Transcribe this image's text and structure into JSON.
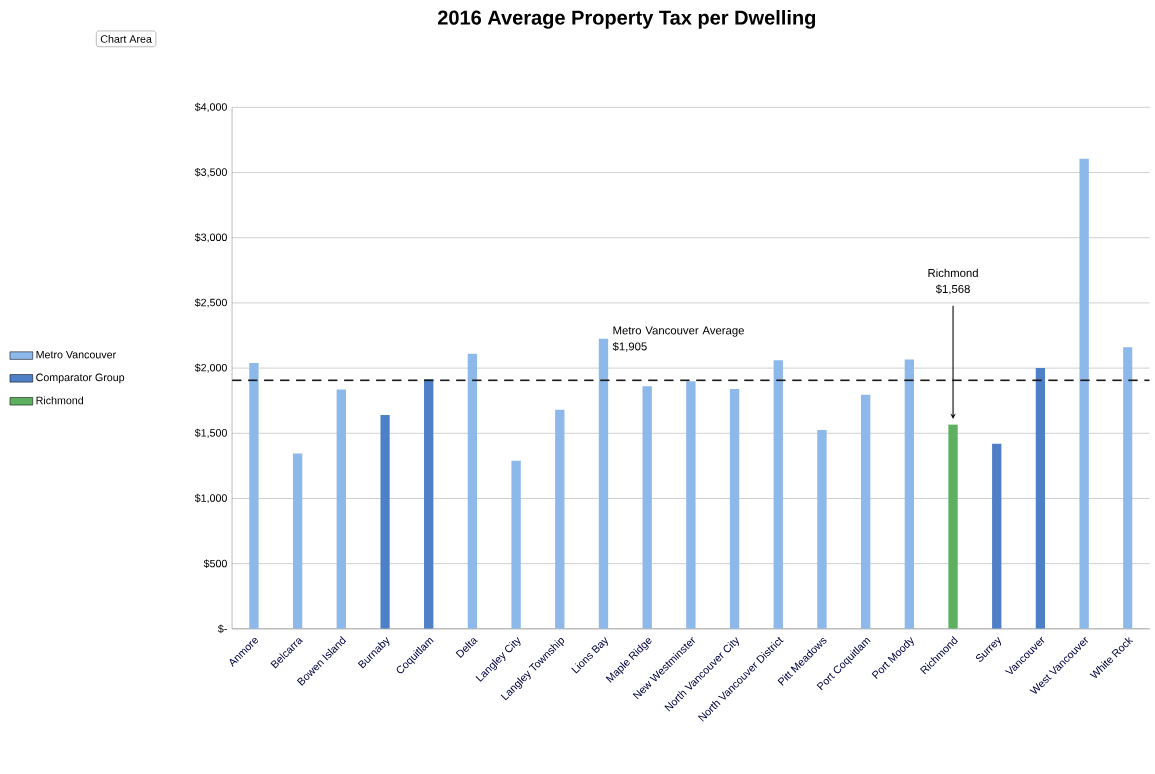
{
  "chart_data": {
    "type": "bar",
    "title": "2016 Average Property Tax per Dwelling",
    "categories": [
      "Anmore",
      "Belcarra",
      "Bowen Island",
      "Burnaby",
      "Coquitlam",
      "Delta",
      "Langley City",
      "Langley Township",
      "Lions Bay",
      "Maple Ridge",
      "New Westminster",
      "North Vancouver City",
      "North Vancouver District",
      "Pitt Meadows",
      "Port Coquitlam",
      "Port Moody",
      "Richmond",
      "Surrey",
      "Vancouver",
      "West Vancouver",
      "White Rock"
    ],
    "series": [
      {
        "name": "Metro Vancouver",
        "color": "#8db8ea",
        "values": [
          2040,
          1345,
          1835,
          null,
          null,
          2110,
          1290,
          1680,
          2225,
          1860,
          1900,
          1840,
          2060,
          1525,
          1795,
          2065,
          null,
          null,
          null,
          3605,
          2160
        ]
      },
      {
        "name": "Comparator Group",
        "color": "#4f7fc6",
        "values": [
          null,
          null,
          null,
          1640,
          1915,
          null,
          null,
          null,
          null,
          null,
          null,
          null,
          null,
          null,
          null,
          null,
          null,
          1420,
          2000,
          null,
          null
        ]
      },
      {
        "name": "Richmond",
        "color": "#5cb060",
        "values": [
          null,
          null,
          null,
          null,
          null,
          null,
          null,
          null,
          null,
          null,
          null,
          null,
          null,
          null,
          null,
          null,
          1568,
          null,
          null,
          null,
          null
        ]
      }
    ],
    "ylim": [
      0,
      4000
    ],
    "yticks": [
      {
        "value": 0,
        "label": "$-"
      },
      {
        "value": 500,
        "label": "$500"
      },
      {
        "value": 1000,
        "label": "$1,000"
      },
      {
        "value": 1500,
        "label": "$1,500"
      },
      {
        "value": 2000,
        "label": "$2,000"
      },
      {
        "value": 2500,
        "label": "$2,500"
      },
      {
        "value": 3000,
        "label": "$3,000"
      },
      {
        "value": 3500,
        "label": "$3,500"
      },
      {
        "value": 4000,
        "label": "$4,000"
      }
    ],
    "grid": "y",
    "legend": "left",
    "ref_lines": [
      {
        "axis": "y",
        "value": 1905,
        "label": "Metro Vancouver Average $1,905",
        "color": "#1a1a1a",
        "line_style": "dashed"
      }
    ],
    "annotations": [
      {
        "text": "Richmond $1,568",
        "x": "Richmond",
        "y": 1568
      },
      "Chart Area"
    ]
  }
}
